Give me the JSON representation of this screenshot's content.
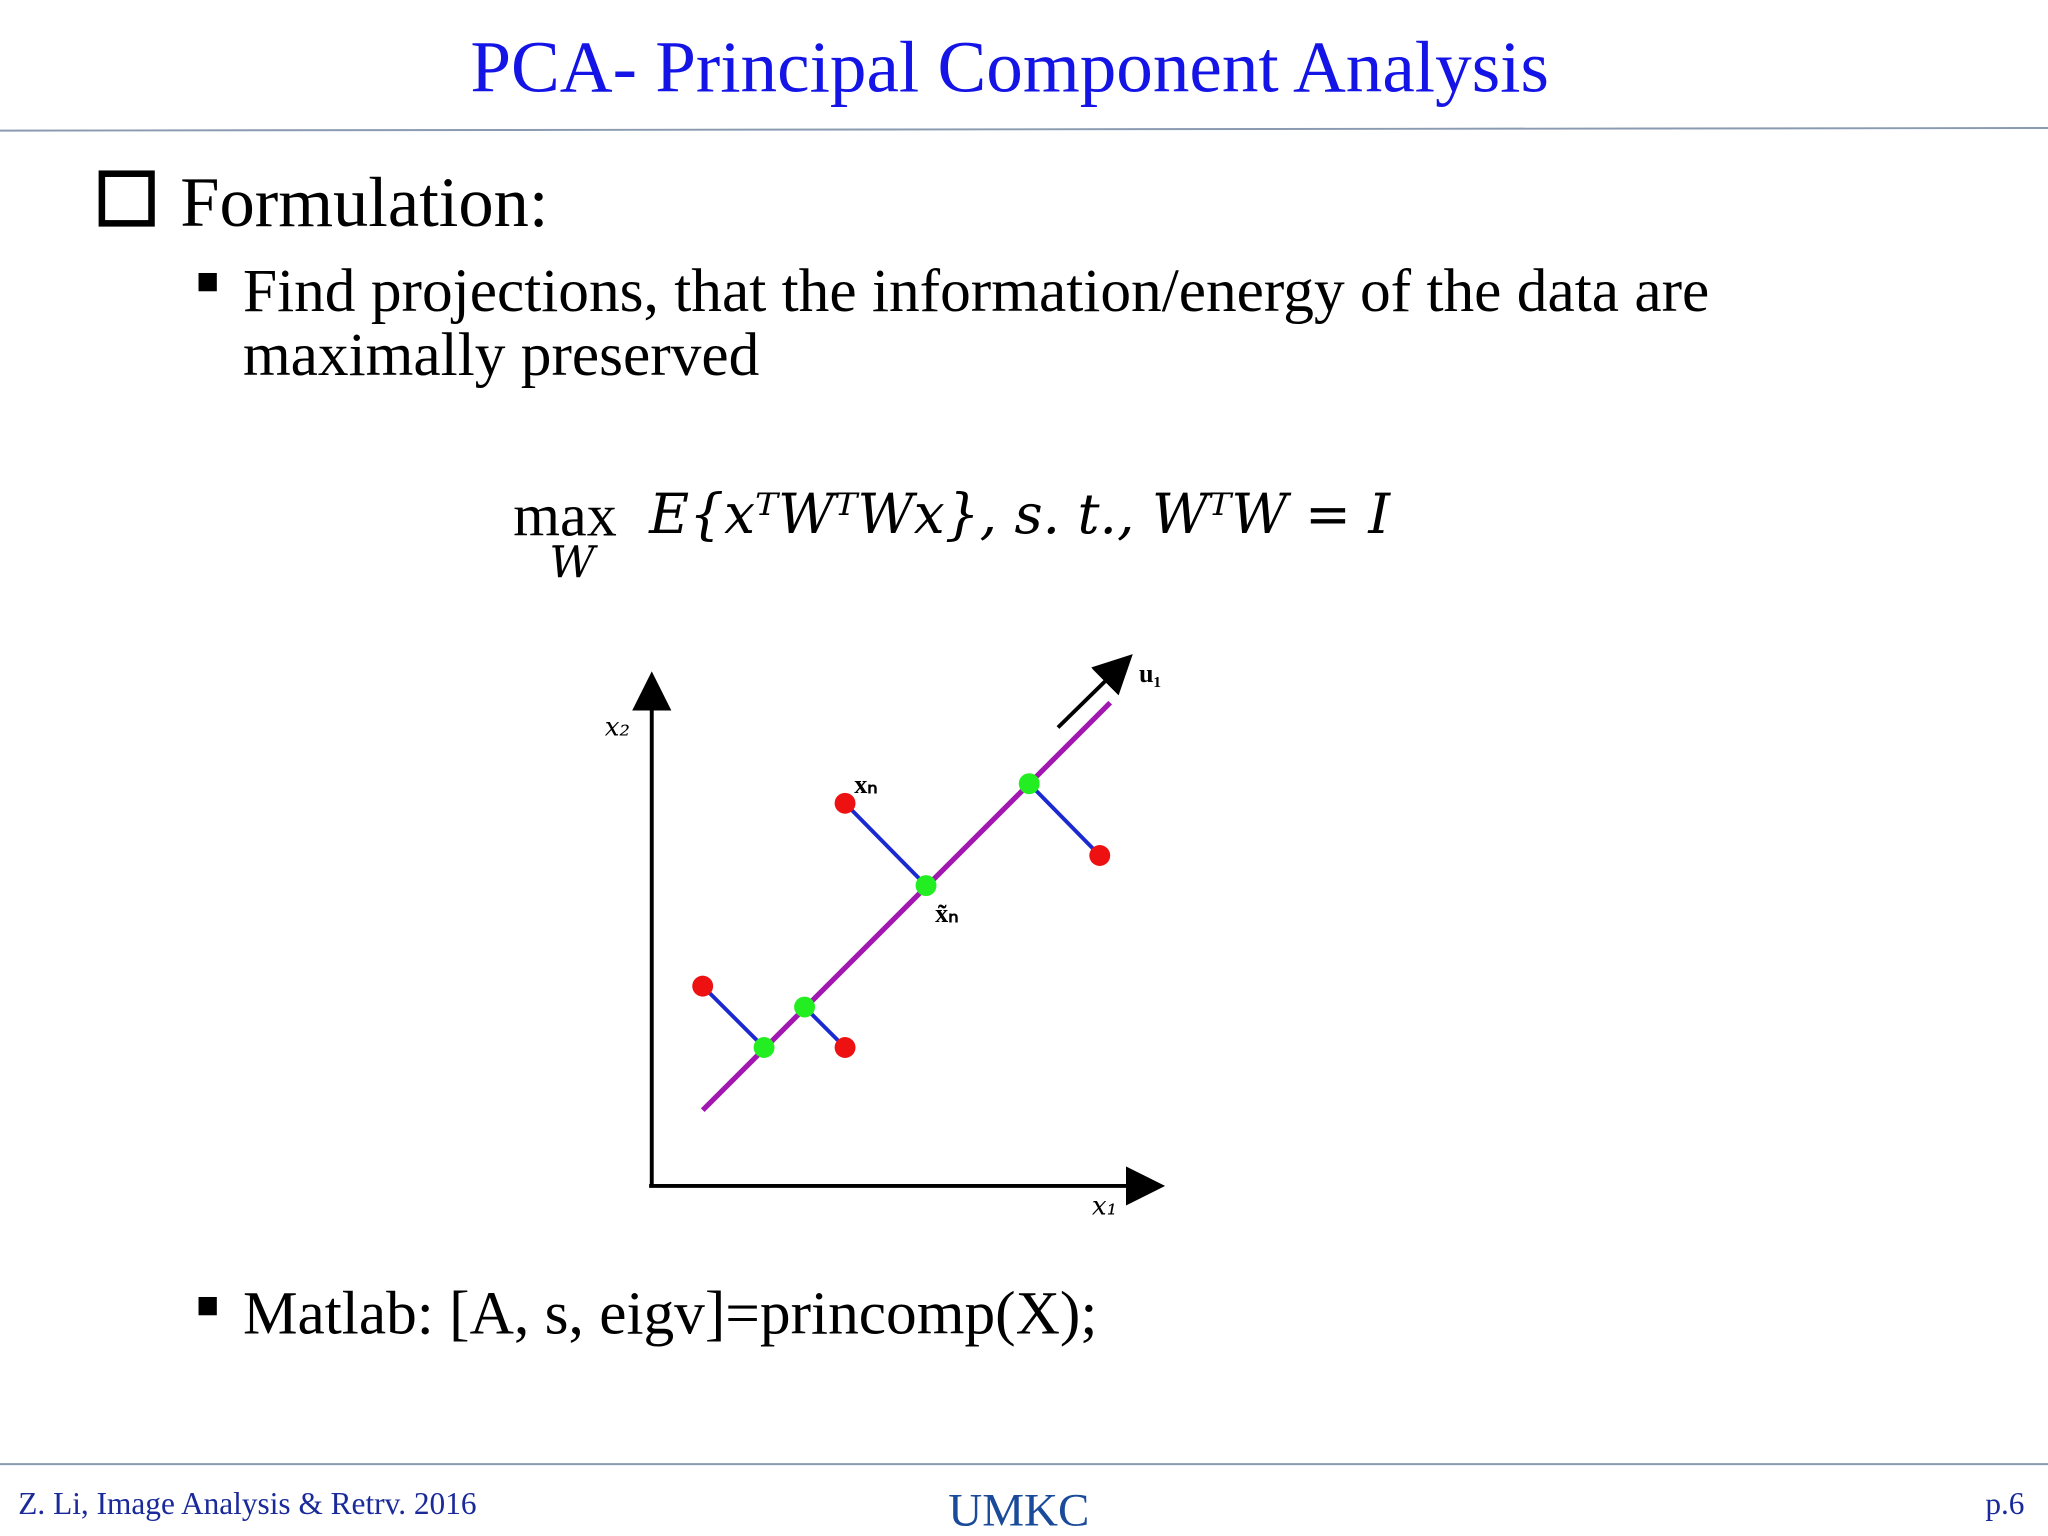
{
  "header": {
    "title": "PCA- Principal Component Analysis"
  },
  "body": {
    "heading": "Formulation:",
    "bullet1": [
      "Find projections, that the information/energy of the data are",
      "maximally preserved"
    ],
    "formula": {
      "operator": "max",
      "subscript": "W",
      "expression": "E{xᵀWᵀWx}, s. t., WᵀW = I"
    },
    "figure": {
      "y_axis": "x₂",
      "x_axis": "x₁",
      "direction": "u₁",
      "point": "xₙ",
      "projection": "x̃ₙ"
    },
    "bullet2": "Matlab: [A, s, eigv]=princomp(X);"
  },
  "footer": {
    "left": "Z. Li, Image Analysis & Retrv. 2016",
    "logo": "UMKC",
    "page": "p.6"
  }
}
